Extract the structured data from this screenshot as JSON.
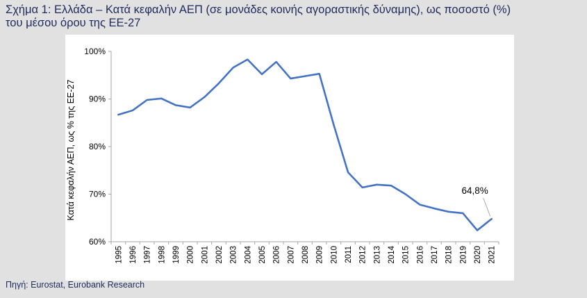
{
  "title_line1": "Σχήμα 1: Ελλάδα – Κατά κεφαλήν ΑΕΠ (σε μονάδες κοινής αγοραστικής δύναμης), ως ποσοστό (%)",
  "title_line2": "του μέσου όρου της ΕΕ-27",
  "source": "Πηγή: Eurostat, Eurobank Research",
  "colors": {
    "line": "#4472c4",
    "title": "#1f2a5c",
    "background": "#e1e1e1",
    "panel": "#ffffff"
  },
  "chart_data": {
    "type": "line",
    "title": "",
    "xlabel": "",
    "ylabel": "Κατά κεφαλήν ΑΕΠ, ως % της ΕΕ-27",
    "ylim": [
      60,
      100
    ],
    "yticks": [
      60,
      70,
      80,
      90,
      100
    ],
    "ytick_labels": [
      "60%",
      "70%",
      "80%",
      "90%",
      "100%"
    ],
    "grid": false,
    "categories": [
      "1995",
      "1996",
      "1997",
      "1998",
      "1999",
      "2000",
      "2001",
      "2002",
      "2003",
      "2004",
      "2005",
      "2006",
      "2007",
      "2008",
      "2009",
      "2010",
      "2011",
      "2012",
      "2013",
      "2014",
      "2015",
      "2016",
      "2017",
      "2018",
      "2019",
      "2020",
      "2021"
    ],
    "series": [
      {
        "name": "Ελλάδα",
        "values": [
          86.7,
          87.6,
          89.8,
          90.1,
          88.7,
          88.2,
          90.4,
          93.3,
          96.6,
          98.3,
          95.2,
          97.8,
          94.3,
          94.8,
          95.3,
          84.6,
          74.6,
          71.4,
          72.0,
          71.8,
          70.0,
          67.8,
          67.0,
          66.3,
          66.0,
          62.4,
          64.8
        ]
      }
    ],
    "annotations": [
      {
        "text": "64,8%",
        "category": "2021",
        "value": 64.8
      }
    ]
  }
}
